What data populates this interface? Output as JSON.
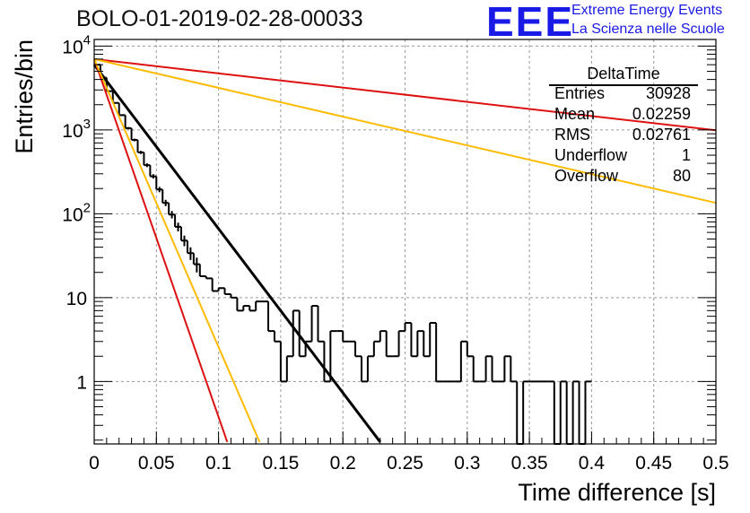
{
  "header": {
    "title": "BOLO-01-2019-02-28-00033",
    "logo_text": "EEE",
    "logo_line1": "Extreme Energy Events",
    "logo_line2": "La Scienza nelle Scuole"
  },
  "stats_box": {
    "title": "DeltaTime",
    "rows": [
      {
        "key": "Entries",
        "value": "30928"
      },
      {
        "key": "Mean",
        "value": "0.02259"
      },
      {
        "key": "RMS",
        "value": "0.02761"
      },
      {
        "key": "Underflow",
        "value": "1"
      },
      {
        "key": "Overflow",
        "value": "80"
      }
    ]
  },
  "colors": {
    "histogram": "#000000",
    "fit": "#000000",
    "red": "#dd1111",
    "orange": "#ffbb00",
    "logo": "#1a1ae6",
    "grid": "#999999"
  },
  "chart_data": {
    "type": "line",
    "title": "BOLO-01-2019-02-28-00033",
    "xlabel": "Time difference [s]",
    "ylabel": "Entries/bin",
    "log_y": true,
    "grid": true,
    "xlim": [
      0,
      0.5
    ],
    "ylim": [
      0.18,
      12000
    ],
    "x_ticks": [
      0,
      0.05,
      0.1,
      0.15,
      0.2,
      0.25,
      0.3,
      0.35,
      0.4,
      0.45,
      0.5
    ],
    "x_tick_labels": [
      "0",
      "0.05",
      "0.1",
      "0.15",
      "0.2",
      "0.25",
      "0.3",
      "0.35",
      "0.4",
      "0.45",
      "0.5"
    ],
    "y_ticks": [
      1,
      10,
      100,
      1000,
      10000
    ],
    "y_tick_labels": [
      "1",
      "10",
      "10^2",
      "10^3",
      "10^4"
    ],
    "bin_width": 0.005,
    "histogram": [
      6000,
      4200,
      2900,
      2100,
      1500,
      1050,
      760,
      540,
      380,
      280,
      195,
      135,
      98,
      70,
      48,
      34,
      25,
      18,
      17,
      12,
      13,
      11,
      10,
      7,
      8,
      7,
      9,
      9,
      4,
      3,
      1,
      2,
      7,
      2,
      3,
      8,
      3,
      1,
      4,
      4,
      3,
      3,
      2,
      1,
      2,
      3,
      4,
      2,
      2,
      4,
      5,
      2,
      4,
      2,
      5,
      1,
      1,
      1,
      1,
      3,
      2,
      1,
      1,
      2,
      1,
      1,
      2,
      1,
      0,
      1,
      1,
      1,
      1,
      1,
      0,
      1,
      0,
      1,
      0,
      1
    ],
    "series": [
      {
        "name": "",
        "color": "#000000",
        "x": [
          0,
          0.23
        ],
        "y": [
          6000,
          0.19
        ]
      },
      {
        "name": "",
        "color": "#dd1111",
        "x": [
          0,
          0.5
        ],
        "y": [
          7000,
          990
        ]
      },
      {
        "name": "",
        "color": "#dd1111",
        "x": [
          0,
          0.107
        ],
        "y": [
          7000,
          0.19
        ]
      },
      {
        "name": "",
        "color": "#ffbb00",
        "x": [
          0,
          0.5
        ],
        "y": [
          7000,
          135
        ]
      },
      {
        "name": "",
        "color": "#ffbb00",
        "x": [
          0,
          0.133
        ],
        "y": [
          7000,
          0.19
        ]
      }
    ]
  }
}
